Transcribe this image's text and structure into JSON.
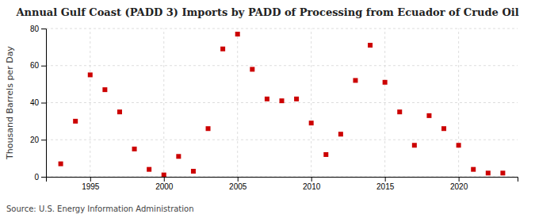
{
  "chart_data": {
    "type": "scatter",
    "title": "Annual Gulf Coast (PADD 3) Imports by PADD of Processing from Ecuador of Crude Oil",
    "ylabel": "Thousand Barrels per Day",
    "annotations": [
      "Source: U.S. Energy Information Administration"
    ],
    "x": [
      1993,
      1994,
      1995,
      1996,
      1997,
      1998,
      1999,
      2000,
      2001,
      2002,
      2003,
      2004,
      2005,
      2006,
      2007,
      2008,
      2009,
      2010,
      2011,
      2012,
      2013,
      2014,
      2015,
      2016,
      2017,
      2018,
      2019,
      2020,
      2021,
      2022,
      2023
    ],
    "values": [
      7,
      30,
      55,
      47,
      35,
      15,
      4,
      1,
      11,
      3,
      26,
      69,
      77,
      58,
      42,
      41,
      42,
      29,
      12,
      23,
      52,
      71,
      51,
      35,
      17,
      33,
      26,
      17,
      4,
      2,
      2
    ],
    "color": "#cc0000",
    "marker": "square",
    "xlim": [
      1992,
      2024
    ],
    "xticks": [
      1995,
      2000,
      2005,
      2010,
      2015,
      2020
    ],
    "ylim": [
      0,
      80
    ],
    "yticks": [
      0,
      20,
      40,
      60,
      80
    ],
    "grid": true
  }
}
